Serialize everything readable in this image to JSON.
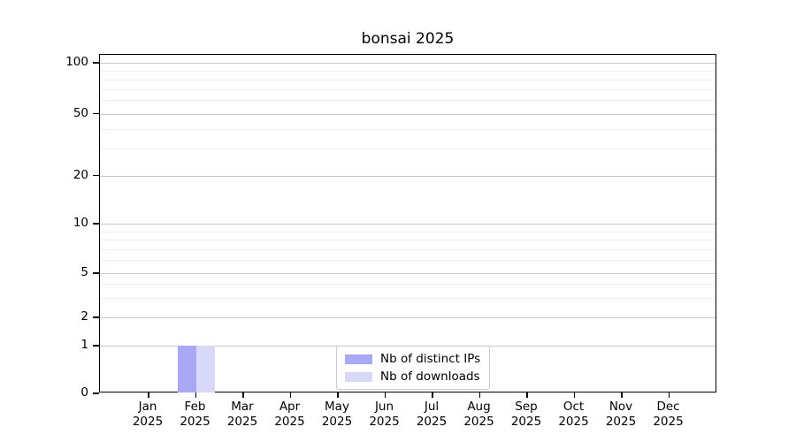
{
  "chart_data": {
    "type": "bar",
    "title": "bonsai 2025",
    "categories": [
      "Jan 2025",
      "Feb 2025",
      "Mar 2025",
      "Apr 2025",
      "May 2025",
      "Jun 2025",
      "Jul 2025",
      "Aug 2025",
      "Sep 2025",
      "Oct 2025",
      "Nov 2025",
      "Dec 2025"
    ],
    "series": [
      {
        "name": "Nb of distinct IPs",
        "color": "#a8a8f4",
        "values": [
          0,
          1,
          0,
          0,
          0,
          0,
          0,
          0,
          0,
          0,
          0,
          0
        ]
      },
      {
        "name": "Nb of downloads",
        "color": "#d8d8f9",
        "values": [
          0,
          1,
          0,
          0,
          0,
          0,
          0,
          0,
          0,
          0,
          0,
          0
        ]
      }
    ],
    "yscale": "symlog",
    "ylim": [
      0,
      110
    ],
    "y_ticks": [
      0,
      1,
      2,
      5,
      10,
      20,
      50,
      100
    ],
    "y_minor_ticks": [
      3,
      4,
      6,
      7,
      8,
      9,
      30,
      40,
      60,
      70,
      80,
      90
    ],
    "grid": "horizontal",
    "legend_position": "lower center",
    "axis_color": "#000000",
    "grid_major_color": "#c8c8c8",
    "grid_minor_color": "#eeeeee"
  }
}
